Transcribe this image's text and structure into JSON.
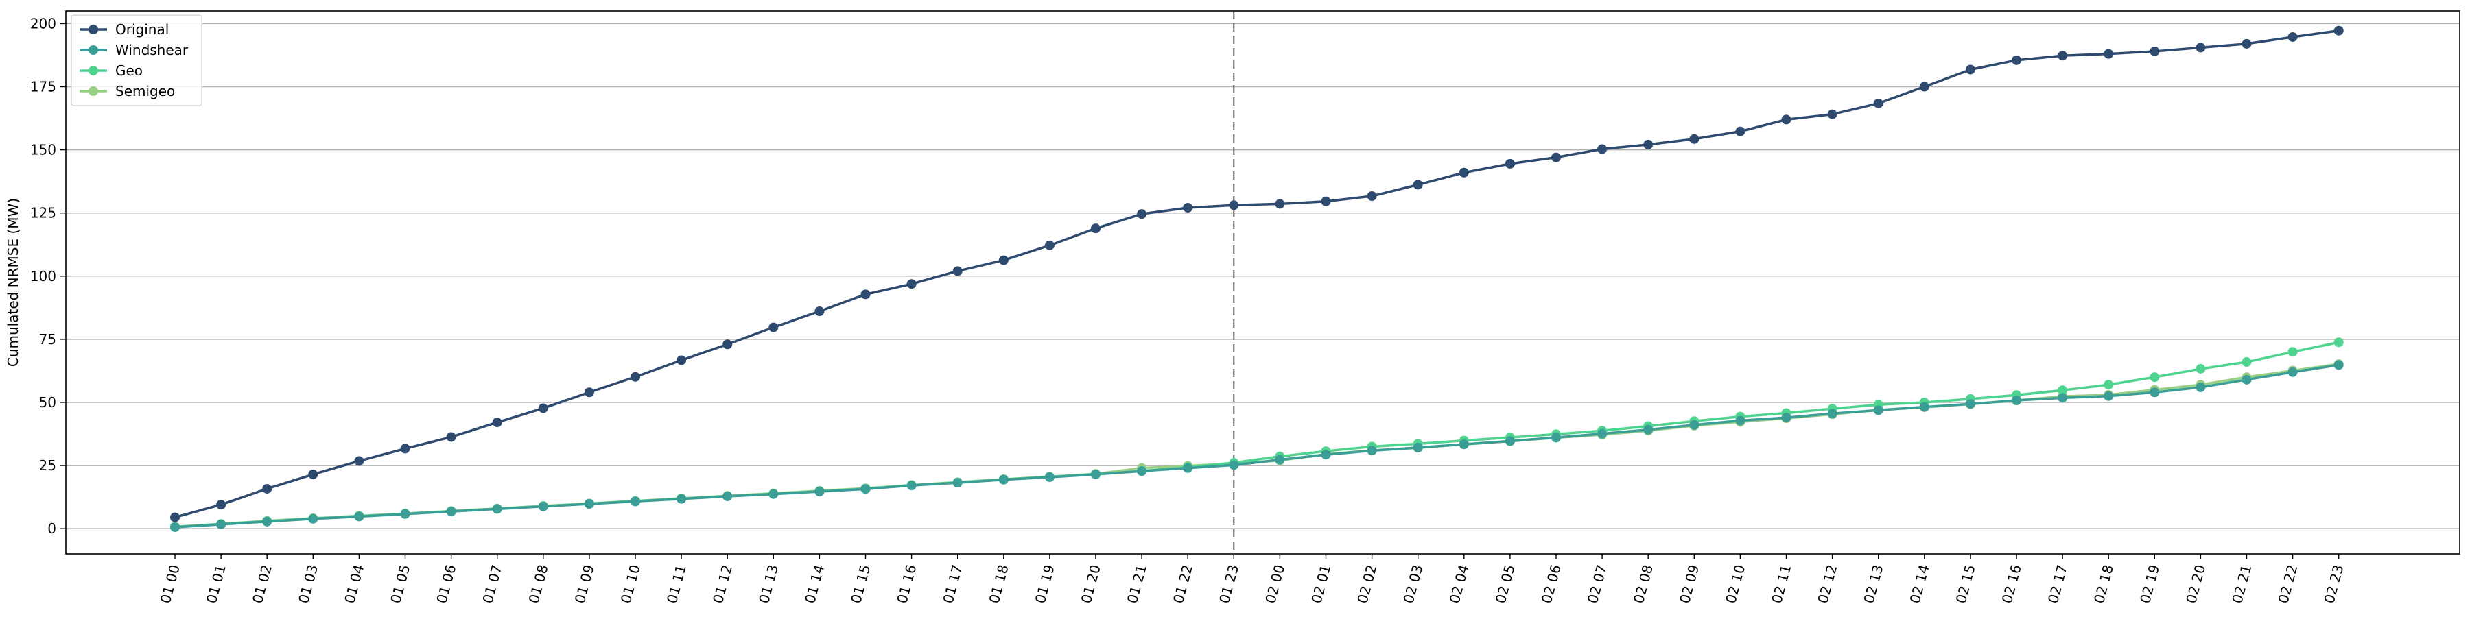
{
  "chart_data": {
    "type": "line",
    "title": "",
    "xlabel": "",
    "ylabel": "Cumulated NRMSE (MW)",
    "ylim": [
      -10,
      205
    ],
    "yticks": [
      0,
      25,
      50,
      75,
      100,
      125,
      150,
      175,
      200
    ],
    "grid": "y",
    "legend_position": "top-left",
    "vline_category": "01 23",
    "categories": [
      "01 00",
      "01 01",
      "01 02",
      "01 03",
      "01 04",
      "01 05",
      "01 06",
      "01 07",
      "01 08",
      "01 09",
      "01 10",
      "01 11",
      "01 12",
      "01 13",
      "01 14",
      "01 15",
      "01 16",
      "01 17",
      "01 18",
      "01 19",
      "01 20",
      "01 21",
      "01 22",
      "01 23",
      "02 00",
      "02 01",
      "02 02",
      "02 03",
      "02 04",
      "02 05",
      "02 06",
      "02 07",
      "02 08",
      "02 09",
      "02 10",
      "02 11",
      "02 12",
      "02 13",
      "02 14",
      "02 15",
      "02 16",
      "02 17",
      "02 18",
      "02 19",
      "02 20",
      "02 21",
      "02 22",
      "02 23"
    ],
    "series": [
      {
        "name": "Original",
        "color": "#2e4a6e",
        "values": [
          4.5,
          9.5,
          15.8,
          21.5,
          26.8,
          31.7,
          36.3,
          42.1,
          47.7,
          54,
          60.1,
          66.7,
          73,
          79.7,
          86.1,
          92.8,
          96.9,
          102,
          106.3,
          112.2,
          118.9,
          124.6,
          127.1,
          128.1,
          128.6,
          129.6,
          131.7,
          136.2,
          141,
          144.5,
          147,
          150.3,
          152.1,
          154.3,
          157.3,
          162,
          164.1,
          168.4,
          175,
          181.8,
          185.5,
          187.3,
          188,
          189,
          190.5,
          192,
          194.7,
          197.2
        ]
      },
      {
        "name": "Windshear",
        "color": "#3a9e96",
        "values": [
          0.6,
          1.7,
          2.8,
          3.9,
          4.8,
          5.8,
          6.8,
          7.8,
          8.8,
          9.8,
          10.8,
          11.8,
          12.8,
          13.7,
          14.7,
          15.7,
          17.1,
          18.2,
          19.4,
          20.4,
          21.5,
          22.8,
          24,
          25.2,
          27.3,
          29.3,
          30.9,
          32.1,
          33.4,
          34.7,
          36.1,
          37.6,
          39.2,
          41.1,
          42.8,
          44,
          45.6,
          46.9,
          48.2,
          49.4,
          50.8,
          51.8,
          52.5,
          54,
          56,
          59,
          62,
          64.8
        ]
      },
      {
        "name": "Geo",
        "color": "#4fd48f",
        "values": [
          0.7,
          1.8,
          3,
          4,
          5,
          5.9,
          6.9,
          7.9,
          8.9,
          9.9,
          10.9,
          11.9,
          12.9,
          13.8,
          14.8,
          15.8,
          17.2,
          18.3,
          19.5,
          20.5,
          21.6,
          22.8,
          24.3,
          26.1,
          28.6,
          30.7,
          32.5,
          33.6,
          34.9,
          36.1,
          37.4,
          38.8,
          40.6,
          42.6,
          44.4,
          45.8,
          47.5,
          49.1,
          50,
          51.4,
          52.9,
          54.8,
          57,
          60,
          63.3,
          66,
          70,
          73.8
        ]
      },
      {
        "name": "Semigeo",
        "color": "#98cf84",
        "values": [
          0.8,
          1.9,
          3.1,
          4.1,
          5.1,
          6,
          7,
          8,
          9,
          10,
          11,
          12,
          13,
          14,
          15,
          16,
          17.3,
          18.4,
          19.6,
          20.6,
          21.7,
          24,
          24.9,
          25.8,
          27,
          29.5,
          31,
          32,
          33.4,
          34.6,
          36,
          37.2,
          38.8,
          40.8,
          42.3,
          43.7,
          45.3,
          47,
          48.1,
          49.3,
          50.8,
          52.4,
          53,
          55,
          57,
          60,
          62.6,
          65.2
        ]
      }
    ]
  }
}
